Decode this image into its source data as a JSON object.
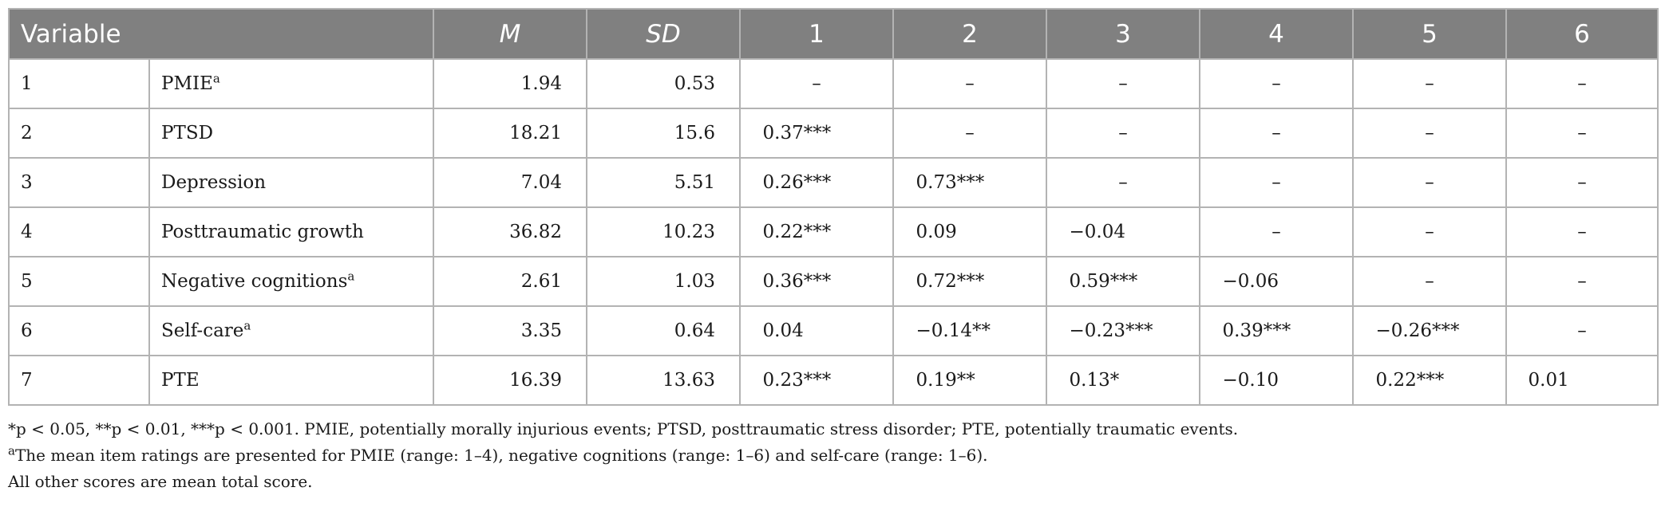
{
  "table": {
    "headers": [
      "Variable",
      "M",
      "SD",
      "1",
      "2",
      "3",
      "4",
      "5",
      "6"
    ],
    "rows": [
      {
        "index": "1",
        "variable": "PMIE",
        "sup": "a",
        "M": "1.94",
        "SD": "0.53",
        "c1": "–",
        "c2": "–",
        "c3": "–",
        "c4": "–",
        "c5": "–",
        "c6": "–"
      },
      {
        "index": "2",
        "variable": "PTSD",
        "sup": "",
        "M": "18.21",
        "SD": "15.6",
        "c1": "0.37***",
        "c2": "–",
        "c3": "–",
        "c4": "–",
        "c5": "–",
        "c6": "–"
      },
      {
        "index": "3",
        "variable": "Depression",
        "sup": "",
        "M": "7.04",
        "SD": "5.51",
        "c1": "0.26***",
        "c2": "0.73***",
        "c3": "–",
        "c4": "–",
        "c5": "–",
        "c6": "–"
      },
      {
        "index": "4",
        "variable": "Posttraumatic growth",
        "sup": "",
        "M": "36.82",
        "SD": "10.23",
        "c1": "0.22***",
        "c2": "0.09",
        "c3": "−0.04",
        "c4": "–",
        "c5": "–",
        "c6": "–"
      },
      {
        "index": "5",
        "variable": "Negative cognitions",
        "sup": "a",
        "M": "2.61",
        "SD": "1.03",
        "c1": "0.36***",
        "c2": "0.72***",
        "c3": "0.59***",
        "c4": "−0.06",
        "c5": "–",
        "c6": "–"
      },
      {
        "index": "6",
        "variable": "Self-care",
        "sup": "a",
        "M": "3.35",
        "SD": "0.64",
        "c1": "0.04",
        "c2": "−0.14**",
        "c3": "−0.23***",
        "c4": "0.39***",
        "c5": "−0.26***",
        "c6": "–"
      },
      {
        "index": "7",
        "variable": "PTE",
        "sup": "",
        "M": "16.39",
        "SD": "13.63",
        "c1": "0.23***",
        "c2": "0.19**",
        "c3": "0.13*",
        "c4": "−0.10",
        "c5": "0.22***",
        "c6": "0.01"
      }
    ]
  },
  "notes": {
    "line1": "*p < 0.05, **p < 0.01, ***p < 0.001. PMIE, potentially morally injurious events; PTSD, posttraumatic stress disorder; PTE, potentially traumatic events.",
    "line2_sup": "a",
    "line2": "The mean item ratings are presented for PMIE (range: 1–4), negative cognitions (range: 1–6) and self-care (range: 1–6).",
    "line3": "All other scores are mean total score."
  }
}
